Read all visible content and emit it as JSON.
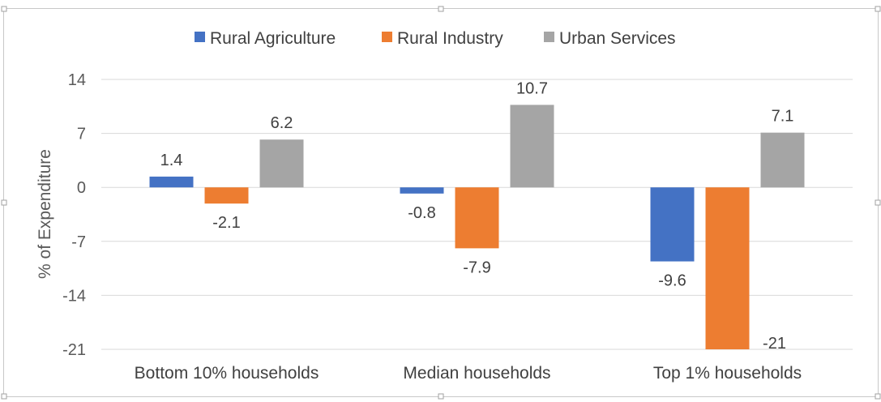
{
  "chart_data": {
    "type": "bar",
    "title": "",
    "xlabel": "",
    "ylabel": "% of Expenditure",
    "ylim": [
      -21,
      14
    ],
    "yticks": [
      14,
      7,
      0,
      -7,
      -14,
      -21
    ],
    "grid": true,
    "legend_position": "top-center",
    "categories": [
      "Bottom 10% households",
      "Median households",
      "Top 1% households"
    ],
    "series": [
      {
        "name": "Rural Agriculture",
        "color": "#4472C4",
        "values": [
          1.4,
          -0.8,
          -9.6
        ],
        "labels": [
          "1.4",
          "-0.8",
          "-9.6"
        ]
      },
      {
        "name": "Rural Industry",
        "color": "#ED7D31",
        "values": [
          -2.1,
          -7.9,
          -21
        ],
        "labels": [
          "-2.1",
          "-7.9",
          "-21"
        ]
      },
      {
        "name": "Urban Services",
        "color": "#A5A5A5",
        "values": [
          6.2,
          10.7,
          7.1
        ],
        "labels": [
          "6.2",
          "10.7",
          "7.1"
        ]
      }
    ]
  }
}
